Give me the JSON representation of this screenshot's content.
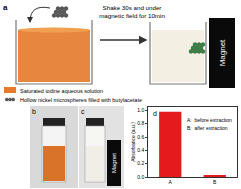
{
  "panel_labels": [
    "a",
    "b",
    "c",
    "d"
  ],
  "step_text": [
    "Shake 30s and under",
    "magnetic field for 10min"
  ],
  "magnet_label": "Magnet",
  "legend": [
    {
      "label": "Saturated iodine aqueous solution",
      "color": "#e47a2a"
    },
    {
      "label": "Hollow nickel microspheres filled with butylacetate",
      "color": "#555555"
    }
  ],
  "chart_data": {
    "type": "bar",
    "categories": [
      "A",
      "B"
    ],
    "values": [
      0.98,
      0.03
    ],
    "color": "#e41a1c",
    "y_label": "Absorbance (a.u.)",
    "ylim": [
      0,
      1.05
    ],
    "yticks": [
      {
        "value": 0,
        "label": "0.0"
      },
      0.2,
      0.4,
      0.6,
      0.8,
      {
        "value": 1,
        "label": "1.0"
      }
    ],
    "annotations": [
      "A:  before extraction",
      "B:  after extraction"
    ],
    "grid": false
  }
}
